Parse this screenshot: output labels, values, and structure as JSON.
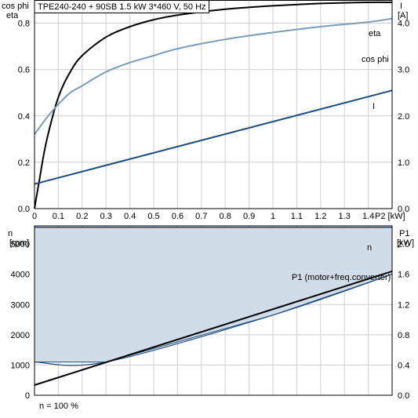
{
  "header_text": "TPE240-240 + 90SB   1.5 kW   3*460 V, 50 Hz",
  "footer_text": "n = 100 %",
  "colors": {
    "eta": "#000000",
    "cos_phi": "#7a9cb9",
    "current": "#1f4e7e",
    "speed": "#1f4e7e",
    "speed_fill": "#d0dce8",
    "power": "#000000",
    "grid": "#cfcfcf",
    "frame": "#000000"
  },
  "chart_data": [
    {
      "type": "line",
      "x_axis": {
        "label": "P2 [kW]",
        "range": [
          0,
          1.5
        ],
        "ticks": [
          0,
          0.1,
          0.2,
          0.3,
          0.4,
          0.5,
          0.6,
          0.7,
          0.8,
          0.9,
          1.0,
          1.1,
          1.2,
          1.3,
          1.4
        ],
        "tick_labels": [
          "0",
          "0.1",
          "0.2",
          "0.3",
          "0.4",
          "0.5",
          "0.6",
          "0.7",
          "0.8",
          "0.9",
          "1",
          "1.1",
          "1.2",
          "1.3",
          "1.4"
        ]
      },
      "y_axis_left": {
        "label_line1": "cos phi",
        "label_line2": "eta",
        "range": [
          0,
          0.9
        ],
        "ticks": [
          0,
          0.2,
          0.4,
          0.6,
          0.8
        ],
        "tick_labels": [
          "0.0",
          "0.2",
          "0.4",
          "0.6",
          "0.8"
        ]
      },
      "y_axis_right": {
        "label_line1": "I",
        "label_line2": "[A]",
        "range": [
          0,
          4.5
        ],
        "ticks": [
          0,
          1,
          2,
          3,
          4
        ],
        "tick_labels": [
          "0.0",
          "1.0",
          "2.0",
          "3.0",
          "4.0"
        ]
      },
      "grid": true,
      "series": [
        {
          "name": "eta",
          "axis": "left",
          "x": [
            0,
            0.02,
            0.05,
            0.1,
            0.15,
            0.2,
            0.3,
            0.4,
            0.5,
            0.6,
            0.8,
            1.0,
            1.2,
            1.4,
            1.5
          ],
          "y": [
            0,
            0.12,
            0.29,
            0.48,
            0.59,
            0.66,
            0.74,
            0.785,
            0.815,
            0.835,
            0.86,
            0.875,
            0.885,
            0.89,
            0.89
          ]
        },
        {
          "name": "cos phi",
          "axis": "left",
          "x": [
            0,
            0.05,
            0.1,
            0.15,
            0.2,
            0.3,
            0.4,
            0.5,
            0.6,
            0.8,
            1.0,
            1.2,
            1.4,
            1.5
          ],
          "y": [
            0.32,
            0.39,
            0.45,
            0.5,
            0.53,
            0.59,
            0.63,
            0.66,
            0.69,
            0.73,
            0.76,
            0.785,
            0.805,
            0.82
          ]
        },
        {
          "name": "I",
          "axis": "right",
          "x": [
            0,
            1.5
          ],
          "y": [
            0.53,
            2.55
          ]
        }
      ]
    },
    {
      "type": "area",
      "x_axis": {
        "range": [
          0,
          1.5
        ],
        "ticks": [
          0,
          0.1,
          0.2,
          0.3,
          0.4,
          0.5,
          0.6,
          0.7,
          0.8,
          0.9,
          1.0,
          1.1,
          1.2,
          1.3,
          1.4
        ]
      },
      "y_axis_left": {
        "label_line1": "n",
        "label_line2": "[rpm]",
        "range": [
          0,
          5600
        ],
        "ticks": [
          0,
          1000,
          2000,
          3000,
          4000,
          5000
        ],
        "tick_labels": [
          "0",
          "1000",
          "2000",
          "3000",
          "4000",
          "5000"
        ]
      },
      "y_axis_right": {
        "label_line1": "P1",
        "label_line2": "[kW]",
        "range": [
          0,
          2.24
        ],
        "ticks": [
          0,
          0.4,
          0.8,
          1.2,
          1.6,
          2.0
        ],
        "tick_labels": [
          "0.0",
          "0.4",
          "0.8",
          "1.2",
          "1.6",
          "2.0"
        ]
      },
      "grid": true,
      "series": [
        {
          "name": "n",
          "axis": "left",
          "upper": {
            "x": [
              0,
              1.5
            ],
            "y": [
              5550,
              5550
            ]
          },
          "lower": {
            "x": [
              0,
              0.3,
              1.0,
              1.5
            ],
            "y": [
              1100,
              1100,
              2650,
              4000
            ]
          }
        },
        {
          "name": "P1 (motor+freq.converter)",
          "axis": "right",
          "x": [
            0,
            1.5
          ],
          "y": [
            0.135,
            1.64
          ]
        }
      ]
    }
  ]
}
